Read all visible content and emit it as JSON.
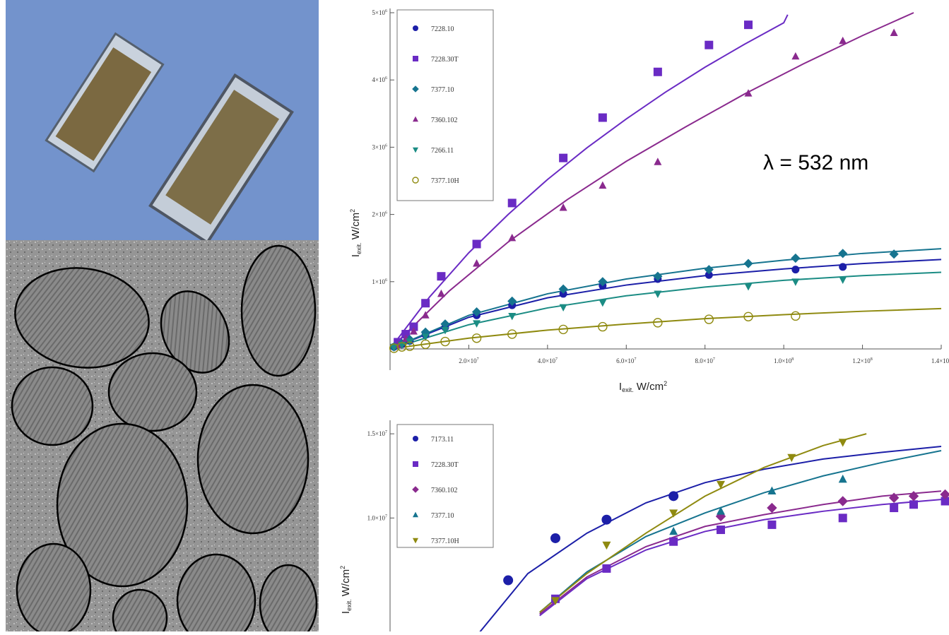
{
  "lambda_label": "λ = 532 nm",
  "chart_data": [
    {
      "type": "scatter",
      "title": "",
      "xlabel": "I_exit W/cm²",
      "ylabel": "I_exit. W/cm²",
      "xlabel_main": "I",
      "xlabel_sub": "exit.",
      "xlabel_unit": " W/cm",
      "ylabel_main": "I",
      "ylabel_sub": "exit.",
      "ylabel_unit": " W/cm",
      "unit_sup": "2",
      "xlim": [
        0,
        140000000
      ],
      "ylim": [
        0,
        5000000
      ],
      "legend_position": "top-left",
      "x_ticks": [
        {
          "value": 20000000,
          "mant": "2.0×10",
          "exp": "7"
        },
        {
          "value": 40000000,
          "mant": "4.0×10",
          "exp": "7"
        },
        {
          "value": 60000000,
          "mant": "6.0×10",
          "exp": "7"
        },
        {
          "value": 80000000,
          "mant": "8.0×10",
          "exp": "7"
        },
        {
          "value": 100000000,
          "mant": "1.0×10",
          "exp": "8"
        },
        {
          "value": 120000000,
          "mant": "1.2×10",
          "exp": "8"
        },
        {
          "value": 140000000,
          "mant": "1.4×10",
          "exp": "8"
        }
      ],
      "y_ticks": [
        {
          "value": 1000000,
          "mant": "1×10",
          "exp": "6"
        },
        {
          "value": 2000000,
          "mant": "2×10",
          "exp": "6"
        },
        {
          "value": 3000000,
          "mant": "3×10",
          "exp": "6"
        },
        {
          "value": 4000000,
          "mant": "4×10",
          "exp": "6"
        },
        {
          "value": 5000000,
          "mant": "5×10",
          "exp": "6"
        }
      ],
      "series": [
        {
          "name": "7228.10",
          "marker": "circle",
          "color": "#1c1fa8",
          "x": [
            1000000,
            3000000,
            5000000,
            9000000,
            14000000,
            22000000,
            31000000,
            44000000,
            54000000,
            68000000,
            81000000,
            103000000,
            115000000
          ],
          "y": [
            30000,
            70000,
            120000,
            210000,
            320000,
            500000,
            650000,
            820000,
            940000,
            1040000,
            1100000,
            1180000,
            1220000
          ],
          "fit_x": [
            0,
            20000000,
            40000000,
            60000000,
            80000000,
            100000000,
            120000000,
            140000000
          ],
          "fit_y": [
            0,
            470000,
            760000,
            950000,
            1090000,
            1190000,
            1270000,
            1330000
          ]
        },
        {
          "name": "7228.30T",
          "marker": "square",
          "color": "#6a2bc4",
          "x": [
            2000000,
            4000000,
            6000000,
            9000000,
            13000000,
            22000000,
            31000000,
            44000000,
            54000000,
            68000000,
            81000000,
            91000000
          ],
          "y": [
            100000,
            220000,
            330000,
            680000,
            1080000,
            1560000,
            2170000,
            2840000,
            3440000,
            4120000,
            4520000,
            4820000
          ],
          "fit_x": [
            0,
            10000000,
            20000000,
            30000000,
            40000000,
            50000000,
            60000000,
            70000000,
            80000000,
            90000000,
            100000000,
            101000000
          ],
          "fit_y": [
            0,
            770000,
            1430000,
            2000000,
            2520000,
            2990000,
            3420000,
            3820000,
            4190000,
            4530000,
            4850000,
            4970000
          ]
        },
        {
          "name": "7377.10",
          "marker": "diamond",
          "color": "#16748f",
          "x": [
            1000000,
            3000000,
            5000000,
            9000000,
            14000000,
            22000000,
            31000000,
            44000000,
            54000000,
            68000000,
            81000000,
            91000000,
            103000000,
            115000000,
            128000000
          ],
          "y": [
            30000,
            80000,
            140000,
            250000,
            370000,
            550000,
            710000,
            890000,
            1000000,
            1080000,
            1180000,
            1270000,
            1350000,
            1420000,
            1410000
          ],
          "fit_x": [
            0,
            20000000,
            40000000,
            60000000,
            80000000,
            100000000,
            120000000,
            140000000
          ],
          "fit_y": [
            0,
            500000,
            820000,
            1040000,
            1200000,
            1320000,
            1420000,
            1490000
          ]
        },
        {
          "name": "7360.102",
          "marker": "triangle-up",
          "color": "#8a2a8e",
          "x": [
            2000000,
            4000000,
            6000000,
            9000000,
            13000000,
            22000000,
            31000000,
            44000000,
            54000000,
            68000000,
            91000000,
            103000000,
            115000000,
            128000000
          ],
          "y": [
            60000,
            150000,
            260000,
            500000,
            820000,
            1270000,
            1650000,
            2100000,
            2430000,
            2780000,
            3800000,
            4350000,
            4580000,
            4700000
          ],
          "fit_x": [
            0,
            15000000,
            30000000,
            45000000,
            60000000,
            75000000,
            90000000,
            105000000,
            120000000,
            133000000
          ],
          "fit_y": [
            0,
            860000,
            1590000,
            2220000,
            2790000,
            3300000,
            3790000,
            4240000,
            4660000,
            5000000
          ]
        },
        {
          "name": "7266.11",
          "marker": "triangle-down",
          "color": "#1b8c84",
          "x": [
            1000000,
            3000000,
            5000000,
            9000000,
            14000000,
            22000000,
            31000000,
            44000000,
            54000000,
            68000000,
            91000000,
            103000000,
            115000000
          ],
          "y": [
            30000,
            60000,
            110000,
            180000,
            280000,
            380000,
            490000,
            620000,
            690000,
            820000,
            930000,
            1000000,
            1030000
          ],
          "fit_x": [
            0,
            20000000,
            40000000,
            60000000,
            80000000,
            100000000,
            120000000,
            140000000
          ],
          "fit_y": [
            0,
            360000,
            610000,
            790000,
            920000,
            1020000,
            1090000,
            1140000
          ]
        },
        {
          "name": "7377.10H",
          "marker": "circle-open",
          "color": "#8f8a10",
          "x": [
            1000000,
            3000000,
            5000000,
            9000000,
            14000000,
            22000000,
            31000000,
            44000000,
            54000000,
            68000000,
            81000000,
            91000000,
            103000000
          ],
          "y": [
            10000,
            30000,
            40000,
            70000,
            110000,
            160000,
            220000,
            290000,
            330000,
            390000,
            440000,
            480000,
            490000
          ],
          "fit_x": [
            0,
            20000000,
            40000000,
            60000000,
            80000000,
            100000000,
            120000000,
            140000000
          ],
          "fit_y": [
            0,
            160000,
            280000,
            370000,
            450000,
            510000,
            560000,
            600000
          ]
        }
      ]
    },
    {
      "type": "scatter",
      "title": "",
      "xlabel": "",
      "ylabel": "I_exit. W/cm²",
      "ylabel_main": "I",
      "ylabel_sub": "exit.",
      "ylabel_unit": " W/cm",
      "unit_sup": "2",
      "xlim": [
        0,
        140000000
      ],
      "ylim": [
        2800000,
        15300000
      ],
      "legend_position": "top-left",
      "y_ticks": [
        {
          "value": 10000000,
          "mant": "1.0×10",
          "exp": "7"
        },
        {
          "value": 15000000,
          "mant": "1.5×10",
          "exp": "7"
        }
      ],
      "series": [
        {
          "name": "7173.11",
          "marker": "circle",
          "color": "#1c1fa8",
          "x": [
            30000000,
            42000000,
            55000000,
            72000000
          ],
          "y": [
            6300000,
            8800000,
            9900000,
            11300000
          ],
          "fit_x": [
            22000000,
            35000000,
            50000000,
            65000000,
            80000000,
            95000000,
            110000000,
            125000000,
            140000000
          ],
          "fit_y": [
            3000000,
            6700000,
            9100000,
            10900000,
            12100000,
            12900000,
            13500000,
            13900000,
            14250000
          ]
        },
        {
          "name": "7228.30T",
          "marker": "square",
          "color": "#6a2bc4",
          "x": [
            42000000,
            55000000,
            72000000,
            84000000,
            97000000,
            115000000,
            128000000,
            133000000,
            141000000
          ],
          "y": [
            5200000,
            7000000,
            8600000,
            9300000,
            9600000,
            10000000,
            10600000,
            10800000,
            11000000
          ],
          "fit_x": [
            38000000,
            50000000,
            65000000,
            80000000,
            95000000,
            110000000,
            125000000,
            140000000
          ],
          "fit_y": [
            4200000,
            6400000,
            8100000,
            9200000,
            9900000,
            10400000,
            10800000,
            11100000
          ]
        },
        {
          "name": "7360.102",
          "marker": "diamond",
          "color": "#8a2a8e",
          "x": [
            84000000,
            97000000,
            115000000,
            128000000,
            133000000,
            141000000
          ],
          "y": [
            10100000,
            10600000,
            11000000,
            11200000,
            11300000,
            11400000
          ],
          "fit_x": [
            38000000,
            50000000,
            65000000,
            80000000,
            95000000,
            110000000,
            125000000,
            140000000
          ],
          "fit_y": [
            4300000,
            6500000,
            8300000,
            9500000,
            10200000,
            10800000,
            11300000,
            11600000
          ]
        },
        {
          "name": "7377.10",
          "marker": "triangle-up",
          "color": "#16748f",
          "x": [
            72000000,
            84000000,
            97000000,
            115000000
          ],
          "y": [
            9200000,
            10400000,
            11600000,
            12300000
          ],
          "fit_x": [
            38000000,
            50000000,
            65000000,
            80000000,
            95000000,
            110000000,
            125000000,
            140000000
          ],
          "fit_y": [
            4400000,
            6800000,
            8900000,
            10300000,
            11500000,
            12500000,
            13300000,
            14000000
          ]
        },
        {
          "name": "7377.10H",
          "marker": "triangle-down",
          "color": "#8f8a10",
          "x": [
            42000000,
            55000000,
            72000000,
            84000000,
            102000000,
            115000000
          ],
          "y": [
            5100000,
            8400000,
            10300000,
            12000000,
            13600000,
            14500000
          ],
          "fit_x": [
            38000000,
            50000000,
            65000000,
            80000000,
            95000000,
            110000000,
            121000000
          ],
          "fit_y": [
            4400000,
            6700000,
            9100000,
            11300000,
            13000000,
            14300000,
            15000000
          ]
        }
      ]
    }
  ]
}
